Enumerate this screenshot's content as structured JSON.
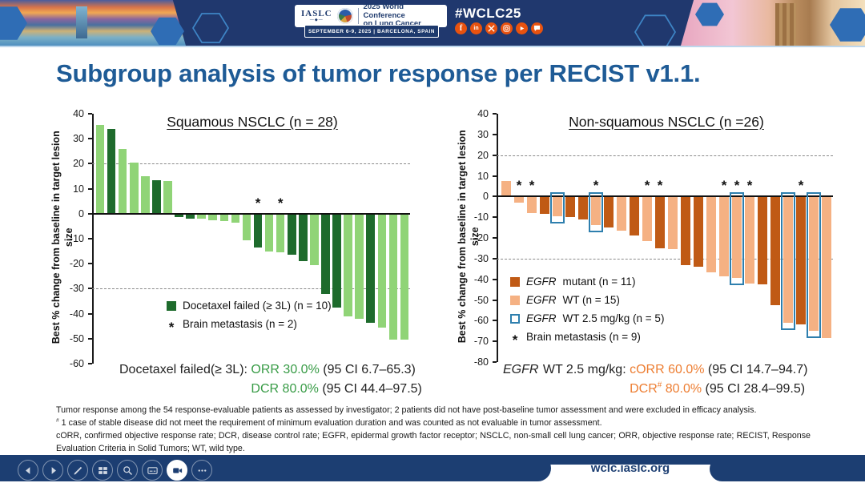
{
  "header": {
    "iaslc": "IASLC",
    "iaslc_sub": "—◆—",
    "conference_line1": "2025 World Conference",
    "conference_line2": "on Lung Cancer",
    "date_location": "SEPTEMBER 6-9, 2025   |   BARCELONA, SPAIN",
    "hashtag": "#WCLC25",
    "social": [
      "facebook",
      "linkedin",
      "x",
      "instagram",
      "youtube",
      "chat"
    ]
  },
  "title": "Subgroup analysis of tumor response per RECIST v1.1.",
  "theme": {
    "navy": "#1f3a6e",
    "title_blue": "#1e5b96",
    "social_orange": "#e8520f",
    "header_border": "#bcd6ec"
  },
  "chart_data": [
    {
      "type": "bar",
      "title": "Squamous NSCLC (n = 28)",
      "ylabel": "Best % change from baseline in target lesion size",
      "ylim": [
        -60,
        40
      ],
      "ytick_step": 10,
      "reference_lines": [
        20,
        -30
      ],
      "grid": "dashed-at-20-and-minus-30",
      "legend_position": "lower-left-inside",
      "colors": {
        "dark": "#1e6b2c",
        "light": "#90d477",
        "box": null
      },
      "legend": [
        {
          "swatch": "dark",
          "italic": "",
          "text": "Docetaxel failed (≥ 3L) (n = 10)"
        },
        {
          "swatch": "asterisk",
          "italic": "",
          "text": "Brain metastasis (n = 2)"
        }
      ],
      "bars": [
        {
          "v": 35.5,
          "g": "light"
        },
        {
          "v": 34,
          "g": "dark"
        },
        {
          "v": 26,
          "g": "light"
        },
        {
          "v": 20.5,
          "g": "light"
        },
        {
          "v": 15,
          "g": "light"
        },
        {
          "v": 13.5,
          "g": "dark"
        },
        {
          "v": 13,
          "g": "light"
        },
        {
          "v": -1.5,
          "g": "dark"
        },
        {
          "v": -2,
          "g": "dark"
        },
        {
          "v": -2,
          "g": "light"
        },
        {
          "v": -2.5,
          "g": "light"
        },
        {
          "v": -3,
          "g": "light"
        },
        {
          "v": -3.5,
          "g": "light"
        },
        {
          "v": -10.5,
          "g": "light"
        },
        {
          "v": -13.5,
          "g": "dark",
          "star": true
        },
        {
          "v": -15,
          "g": "light"
        },
        {
          "v": -15.5,
          "g": "light",
          "star": true
        },
        {
          "v": -16.5,
          "g": "dark"
        },
        {
          "v": -19,
          "g": "dark"
        },
        {
          "v": -20.5,
          "g": "light"
        },
        {
          "v": -32,
          "g": "dark"
        },
        {
          "v": -37.5,
          "g": "dark"
        },
        {
          "v": -41,
          "g": "light"
        },
        {
          "v": -42,
          "g": "light"
        },
        {
          "v": -43.5,
          "g": "dark"
        },
        {
          "v": -45.5,
          "g": "light"
        },
        {
          "v": -50.5,
          "g": "light"
        },
        {
          "v": -50.5,
          "g": "light"
        }
      ],
      "caption": {
        "prefix_italic": "",
        "prefix": "Docetaxel failed(≥ 3L): ",
        "line1_highlight": "ORR 30.0%",
        "line1_rest": " (95 CI 6.7–65.3)",
        "line2_h1": "DCR",
        "line2_sup": "",
        "line2_h2": " 80.0%",
        "line2_rest": " (95 CI 44.4–97.5)",
        "highlight_color": "#379b45"
      }
    },
    {
      "type": "bar",
      "title": "Non-squamous NSCLC (n =26)",
      "ylabel": "Best % change from baseline in target lesion size",
      "ylim": [
        -80,
        40
      ],
      "ytick_step": 10,
      "reference_lines": [
        20,
        -30
      ],
      "grid": "dashed-at-20-and-minus-30",
      "legend_position": "lower-left-inside",
      "colors": {
        "dark": "#c05a15",
        "light": "#f5b183",
        "box": "#2e7fae"
      },
      "legend": [
        {
          "swatch": "dark",
          "italic": "EGFR",
          "text": " mutant (n = 11)"
        },
        {
          "swatch": "light",
          "italic": "EGFR",
          "text": " WT (n = 15)"
        },
        {
          "swatch": "box",
          "italic": "EGFR",
          "text": " WT 2.5 mg/kg (n = 5)"
        },
        {
          "swatch": "asterisk",
          "italic": "",
          "text": "Brain metastasis (n = 9)"
        }
      ],
      "bars": [
        {
          "v": 7.5,
          "g": "light"
        },
        {
          "v": -3,
          "g": "light",
          "star": true
        },
        {
          "v": -8,
          "g": "light",
          "star": true
        },
        {
          "v": -8.5,
          "g": "dark"
        },
        {
          "v": -9.5,
          "g": "light",
          "box": true
        },
        {
          "v": -10,
          "g": "dark"
        },
        {
          "v": -11,
          "g": "dark"
        },
        {
          "v": -14,
          "g": "light",
          "box": true,
          "star": true
        },
        {
          "v": -15,
          "g": "dark"
        },
        {
          "v": -16.5,
          "g": "light"
        },
        {
          "v": -19,
          "g": "dark"
        },
        {
          "v": -21.5,
          "g": "light",
          "star": true
        },
        {
          "v": -25,
          "g": "dark",
          "star": true
        },
        {
          "v": -25.5,
          "g": "light"
        },
        {
          "v": -33,
          "g": "dark"
        },
        {
          "v": -34,
          "g": "dark"
        },
        {
          "v": -36.5,
          "g": "light"
        },
        {
          "v": -38.5,
          "g": "light",
          "star": true
        },
        {
          "v": -39.5,
          "g": "light",
          "box": true,
          "star": true
        },
        {
          "v": -42,
          "g": "light",
          "star": true
        },
        {
          "v": -42.5,
          "g": "dark"
        },
        {
          "v": -52.5,
          "g": "dark"
        },
        {
          "v": -61,
          "g": "light",
          "box": true
        },
        {
          "v": -62,
          "g": "dark",
          "star": true
        },
        {
          "v": -65,
          "g": "light",
          "box": true
        },
        {
          "v": -68.5,
          "g": "light"
        }
      ],
      "caption": {
        "prefix_italic": "EGFR",
        "prefix": " WT 2.5 mg/kg: ",
        "line1_highlight": "cORR 60.0%",
        "line1_rest": " (95 CI 14.7–94.7)",
        "line2_h1": "DCR",
        "line2_sup": "#",
        "line2_h2": " 80.0%",
        "line2_rest": " (95 CI 28.4–99.5)",
        "highlight_color": "#ed7d31"
      }
    }
  ],
  "footnotes": {
    "line1": "Tumor response among the 54 response-evaluable patients as assessed by investigator; 2 patients did not have post-baseline tumor assessment and were excluded in efficacy analysis.",
    "line2_sup": "#",
    "line2": " 1 case of stable disease did not meet the requirement of minimum evaluation duration and was counted as not evaluable in tumor assessment.",
    "line3": "cORR, confirmed objective response rate; DCR, disease control rate; EGFR, epidermal growth factor receptor; NSCLC, non-small cell lung cancer; ORR, objective response rate; RECIST, Response Evaluation Criteria in Solid Tumors; WT, wild type."
  },
  "footer": {
    "url": "wclc.iaslc.org",
    "toolbar": [
      "prev",
      "next",
      "pen",
      "slides",
      "zoom",
      "captions",
      "camera",
      "more"
    ]
  }
}
